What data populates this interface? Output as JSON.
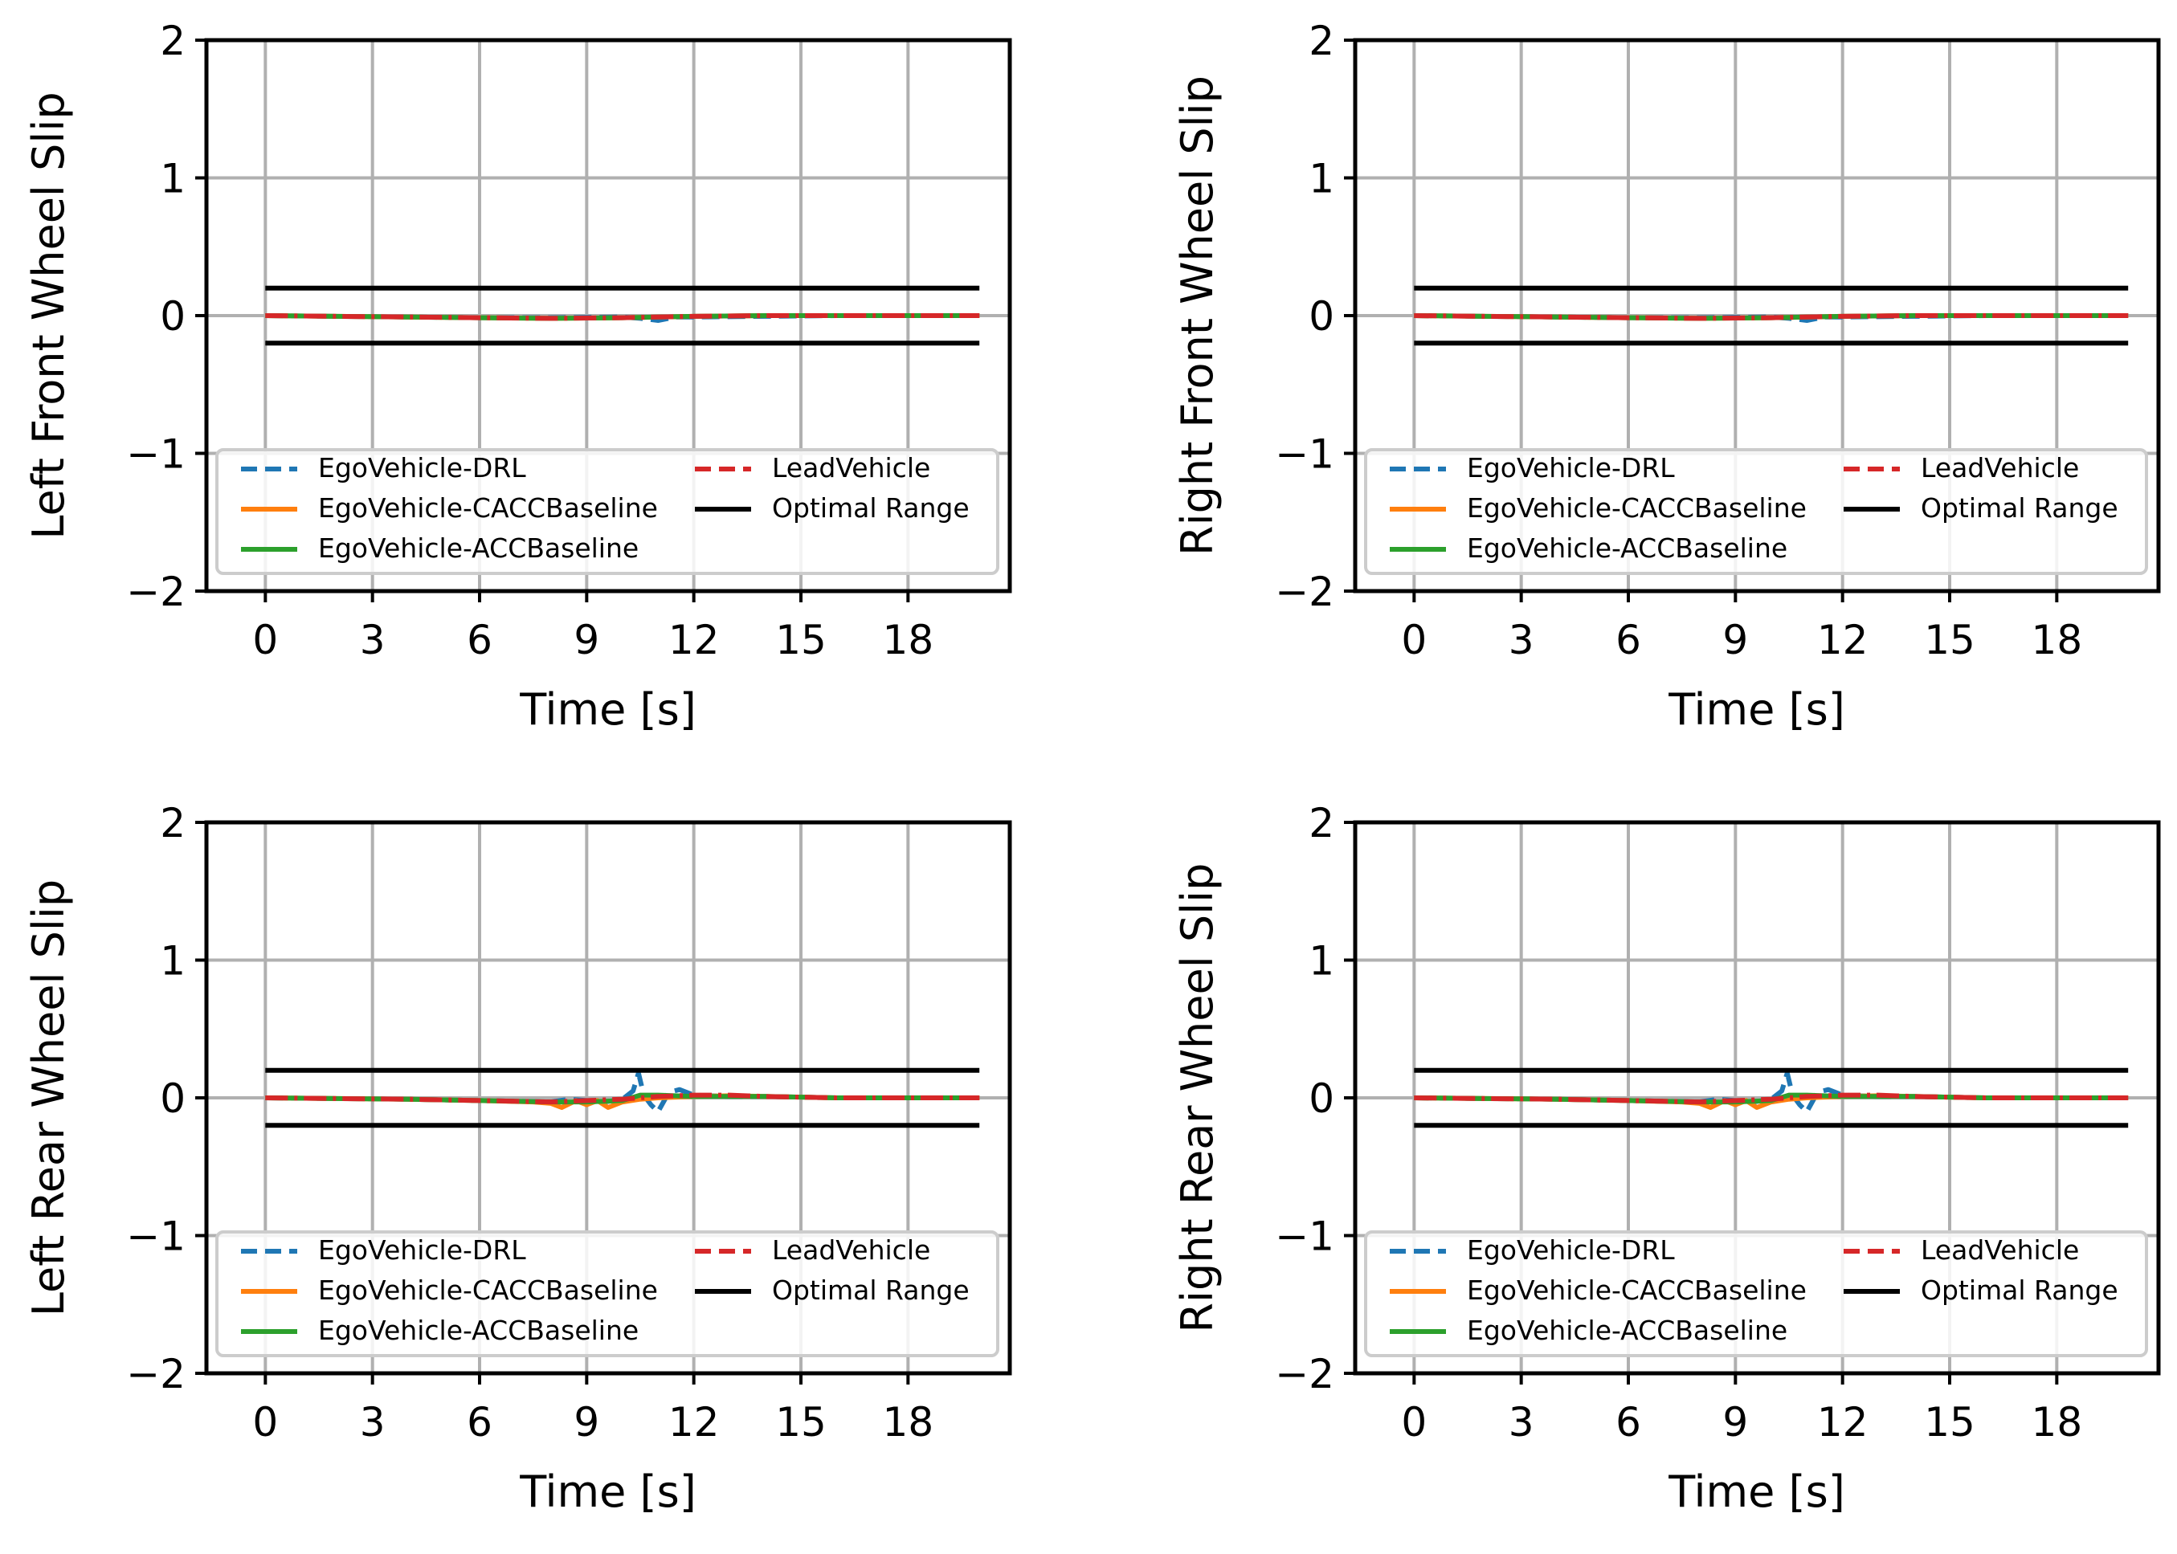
{
  "figure": {
    "background": "#ffffff"
  },
  "colors": {
    "drl": "#1f77b4",
    "cacc": "#ff7f0e",
    "acc": "#2ca02c",
    "lead": "#d62728",
    "optimal": "#000000",
    "grid": "#b0b0b0"
  },
  "chart_data": [
    {
      "type": "line",
      "id": "lf",
      "title": "",
      "xlabel": "Time [s]",
      "ylabel": "Left Front Wheel Slip",
      "xlim": [
        -1.65,
        20.85
      ],
      "ylim": [
        -2,
        2
      ],
      "xticks": [
        0,
        3,
        6,
        9,
        12,
        15,
        18
      ],
      "yticks": [
        -2,
        -1,
        0,
        1,
        2
      ],
      "ytick_labels": [
        "−2",
        "−1",
        "0",
        "1",
        "2"
      ],
      "grid": true,
      "legend": {
        "placement": "lower-center",
        "columns": 2,
        "entries": [
          "EgoVehicle-DRL",
          "EgoVehicle-CACCBaseline",
          "EgoVehicle-ACCBaseline",
          "LeadVehicle",
          "Optimal Range"
        ]
      },
      "series": [
        {
          "name": "EgoVehicle-DRL",
          "key": "drl",
          "style": "dashed",
          "x": [
            0,
            2,
            4,
            6,
            8,
            10,
            10.5,
            11,
            11.5,
            12,
            14,
            16,
            18,
            20
          ],
          "y": [
            0,
            -0.005,
            -0.01,
            -0.015,
            -0.015,
            -0.01,
            -0.02,
            -0.035,
            -0.01,
            -0.01,
            -0.005,
            0,
            0,
            0
          ]
        },
        {
          "name": "EgoVehicle-CACCBaseline",
          "key": "cacc",
          "style": "solid",
          "x": [
            0,
            2,
            4,
            6,
            8,
            10,
            12,
            14,
            16,
            18,
            20
          ],
          "y": [
            0,
            -0.005,
            -0.01,
            -0.015,
            -0.02,
            -0.015,
            -0.005,
            0,
            0,
            0,
            0
          ]
        },
        {
          "name": "EgoVehicle-ACCBaseline",
          "key": "acc",
          "style": "solid",
          "x": [
            0,
            2,
            4,
            6,
            8,
            10,
            12,
            14,
            16,
            18,
            20
          ],
          "y": [
            0,
            -0.005,
            -0.01,
            -0.015,
            -0.02,
            -0.015,
            -0.005,
            0,
            0,
            0,
            0
          ]
        },
        {
          "name": "LeadVehicle",
          "key": "lead",
          "style": "dashdot",
          "x": [
            0,
            2,
            4,
            6,
            8,
            10,
            12,
            14,
            16,
            18,
            20
          ],
          "y": [
            0,
            -0.005,
            -0.01,
            -0.015,
            -0.02,
            -0.015,
            -0.005,
            0,
            0,
            0,
            0
          ]
        },
        {
          "name": "Optimal Range",
          "key": "optimal",
          "style": "solid",
          "x": [
            0,
            20
          ],
          "y": [
            0.2,
            0.2
          ]
        },
        {
          "name": "Optimal Range",
          "key": "optimal",
          "style": "solid",
          "x": [
            0,
            20
          ],
          "y": [
            -0.2,
            -0.2
          ]
        }
      ]
    },
    {
      "type": "line",
      "id": "rf",
      "title": "",
      "xlabel": "Time [s]",
      "ylabel": "Right Front Wheel Slip",
      "xlim": [
        -1.65,
        20.85
      ],
      "ylim": [
        -2,
        2
      ],
      "xticks": [
        0,
        3,
        6,
        9,
        12,
        15,
        18
      ],
      "yticks": [
        -2,
        -1,
        0,
        1,
        2
      ],
      "ytick_labels": [
        "−2",
        "−1",
        "0",
        "1",
        "2"
      ],
      "grid": true,
      "legend": {
        "placement": "lower-center",
        "columns": 2,
        "entries": [
          "EgoVehicle-DRL",
          "EgoVehicle-CACCBaseline",
          "EgoVehicle-ACCBaseline",
          "LeadVehicle",
          "Optimal Range"
        ]
      },
      "series": [
        {
          "name": "EgoVehicle-DRL",
          "key": "drl",
          "style": "dashed",
          "x": [
            0,
            2,
            4,
            6,
            8,
            10,
            10.5,
            11,
            11.5,
            12,
            14,
            16,
            18,
            20
          ],
          "y": [
            0,
            -0.005,
            -0.01,
            -0.015,
            -0.015,
            -0.01,
            -0.02,
            -0.035,
            -0.01,
            -0.01,
            -0.005,
            0,
            0,
            0
          ]
        },
        {
          "name": "EgoVehicle-CACCBaseline",
          "key": "cacc",
          "style": "solid",
          "x": [
            0,
            2,
            4,
            6,
            8,
            10,
            12,
            14,
            16,
            18,
            20
          ],
          "y": [
            0,
            -0.005,
            -0.01,
            -0.015,
            -0.02,
            -0.015,
            -0.005,
            0,
            0,
            0,
            0
          ]
        },
        {
          "name": "EgoVehicle-ACCBaseline",
          "key": "acc",
          "style": "solid",
          "x": [
            0,
            2,
            4,
            6,
            8,
            10,
            12,
            14,
            16,
            18,
            20
          ],
          "y": [
            0,
            -0.005,
            -0.01,
            -0.015,
            -0.02,
            -0.015,
            -0.005,
            0,
            0,
            0,
            0
          ]
        },
        {
          "name": "LeadVehicle",
          "key": "lead",
          "style": "dashdot",
          "x": [
            0,
            2,
            4,
            6,
            8,
            10,
            12,
            14,
            16,
            18,
            20
          ],
          "y": [
            0,
            -0.005,
            -0.01,
            -0.015,
            -0.02,
            -0.015,
            -0.005,
            0,
            0,
            0,
            0
          ]
        },
        {
          "name": "Optimal Range",
          "key": "optimal",
          "style": "solid",
          "x": [
            0,
            20
          ],
          "y": [
            0.2,
            0.2
          ]
        },
        {
          "name": "Optimal Range",
          "key": "optimal",
          "style": "solid",
          "x": [
            0,
            20
          ],
          "y": [
            -0.2,
            -0.2
          ]
        }
      ]
    },
    {
      "type": "line",
      "id": "lr",
      "title": "",
      "xlabel": "Time [s]",
      "ylabel": "Left Rear Wheel Slip",
      "xlim": [
        -1.65,
        20.85
      ],
      "ylim": [
        -2,
        2
      ],
      "xticks": [
        0,
        3,
        6,
        9,
        12,
        15,
        18
      ],
      "yticks": [
        -2,
        -1,
        0,
        1,
        2
      ],
      "ytick_labels": [
        "−2",
        "−1",
        "0",
        "1",
        "2"
      ],
      "grid": true,
      "legend": {
        "placement": "lower-center",
        "columns": 2,
        "entries": [
          "EgoVehicle-DRL",
          "EgoVehicle-CACCBaseline",
          "EgoVehicle-ACCBaseline",
          "LeadVehicle",
          "Optimal Range"
        ]
      },
      "series": [
        {
          "name": "EgoVehicle-DRL",
          "key": "drl",
          "style": "dashed",
          "x": [
            0,
            2,
            4,
            6,
            8,
            8.5,
            9,
            9.5,
            10,
            10.3,
            10.45,
            10.6,
            10.8,
            11,
            11.3,
            11.6,
            12,
            13,
            14,
            16,
            18,
            20
          ],
          "y": [
            0,
            -0.005,
            -0.01,
            -0.02,
            -0.03,
            -0.01,
            -0.02,
            -0.03,
            -0.01,
            0.05,
            0.18,
            0.02,
            -0.05,
            -0.1,
            0.04,
            0.06,
            0.02,
            0.01,
            0.01,
            0,
            0,
            0
          ]
        },
        {
          "name": "EgoVehicle-CACCBaseline",
          "key": "cacc",
          "style": "solid",
          "x": [
            0,
            2,
            4,
            6,
            7.5,
            8,
            8.3,
            8.7,
            9,
            9.3,
            9.6,
            10,
            10.5,
            11,
            12,
            13,
            14,
            16,
            18,
            20
          ],
          "y": [
            0,
            -0.005,
            -0.01,
            -0.02,
            -0.03,
            -0.04,
            -0.07,
            -0.02,
            -0.05,
            -0.02,
            -0.07,
            -0.03,
            -0.01,
            0,
            0.01,
            0.015,
            0.01,
            0,
            0,
            0
          ]
        },
        {
          "name": "EgoVehicle-ACCBaseline",
          "key": "acc",
          "style": "solid",
          "x": [
            0,
            2,
            4,
            6,
            8,
            9,
            10,
            10.5,
            11,
            12,
            13,
            14,
            16,
            18,
            20
          ],
          "y": [
            0,
            -0.005,
            -0.01,
            -0.02,
            -0.03,
            -0.03,
            -0.02,
            0.02,
            0.02,
            0.01,
            0.01,
            0.01,
            0,
            0,
            0
          ]
        },
        {
          "name": "LeadVehicle",
          "key": "lead",
          "style": "dashdot",
          "x": [
            0,
            2,
            4,
            6,
            8,
            9,
            10,
            11,
            12,
            13,
            14,
            16,
            18,
            20
          ],
          "y": [
            0,
            -0.005,
            -0.01,
            -0.02,
            -0.03,
            -0.02,
            -0.01,
            0.01,
            0.02,
            0.02,
            0.01,
            0,
            0,
            0
          ]
        },
        {
          "name": "Optimal Range",
          "key": "optimal",
          "style": "solid",
          "x": [
            0,
            20
          ],
          "y": [
            0.2,
            0.2
          ]
        },
        {
          "name": "Optimal Range",
          "key": "optimal",
          "style": "solid",
          "x": [
            0,
            20
          ],
          "y": [
            -0.2,
            -0.2
          ]
        }
      ]
    },
    {
      "type": "line",
      "id": "rr",
      "title": "",
      "xlabel": "Time [s]",
      "ylabel": "Right Rear Wheel Slip",
      "xlim": [
        -1.65,
        20.85
      ],
      "ylim": [
        -2,
        2
      ],
      "xticks": [
        0,
        3,
        6,
        9,
        12,
        15,
        18
      ],
      "yticks": [
        -2,
        -1,
        0,
        1,
        2
      ],
      "ytick_labels": [
        "−2",
        "−1",
        "0",
        "1",
        "2"
      ],
      "grid": true,
      "legend": {
        "placement": "lower-center",
        "columns": 2,
        "entries": [
          "EgoVehicle-DRL",
          "EgoVehicle-CACCBaseline",
          "EgoVehicle-ACCBaseline",
          "LeadVehicle",
          "Optimal Range"
        ]
      },
      "series": [
        {
          "name": "EgoVehicle-DRL",
          "key": "drl",
          "style": "dashed",
          "x": [
            0,
            2,
            4,
            6,
            8,
            8.5,
            9,
            9.5,
            10,
            10.3,
            10.45,
            10.6,
            10.8,
            11,
            11.3,
            11.6,
            12,
            13,
            14,
            16,
            18,
            20
          ],
          "y": [
            0,
            -0.005,
            -0.01,
            -0.02,
            -0.03,
            -0.01,
            -0.02,
            -0.03,
            -0.01,
            0.05,
            0.18,
            0.02,
            -0.05,
            -0.1,
            0.04,
            0.06,
            0.02,
            0.01,
            0.01,
            0,
            0,
            0
          ]
        },
        {
          "name": "EgoVehicle-CACCBaseline",
          "key": "cacc",
          "style": "solid",
          "x": [
            0,
            2,
            4,
            6,
            7.5,
            8,
            8.3,
            8.7,
            9,
            9.3,
            9.6,
            10,
            10.5,
            11,
            12,
            13,
            14,
            16,
            18,
            20
          ],
          "y": [
            0,
            -0.005,
            -0.01,
            -0.02,
            -0.03,
            -0.04,
            -0.07,
            -0.02,
            -0.05,
            -0.02,
            -0.07,
            -0.03,
            -0.01,
            0,
            0.01,
            0.015,
            0.01,
            0,
            0,
            0
          ]
        },
        {
          "name": "EgoVehicle-ACCBaseline",
          "key": "acc",
          "style": "solid",
          "x": [
            0,
            2,
            4,
            6,
            8,
            9,
            10,
            10.5,
            11,
            12,
            13,
            14,
            16,
            18,
            20
          ],
          "y": [
            0,
            -0.005,
            -0.01,
            -0.02,
            -0.03,
            -0.03,
            -0.02,
            0.02,
            0.02,
            0.01,
            0.01,
            0.01,
            0,
            0,
            0
          ]
        },
        {
          "name": "LeadVehicle",
          "key": "lead",
          "style": "dashdot",
          "x": [
            0,
            2,
            4,
            6,
            8,
            9,
            10,
            11,
            12,
            13,
            14,
            16,
            18,
            20
          ],
          "y": [
            0,
            -0.005,
            -0.01,
            -0.02,
            -0.03,
            -0.02,
            -0.01,
            0.01,
            0.02,
            0.02,
            0.01,
            0,
            0,
            0
          ]
        },
        {
          "name": "Optimal Range",
          "key": "optimal",
          "style": "solid",
          "x": [
            0,
            20
          ],
          "y": [
            0.2,
            0.2
          ]
        },
        {
          "name": "Optimal Range",
          "key": "optimal",
          "style": "solid",
          "x": [
            0,
            20
          ],
          "y": [
            -0.2,
            -0.2
          ]
        }
      ]
    }
  ]
}
